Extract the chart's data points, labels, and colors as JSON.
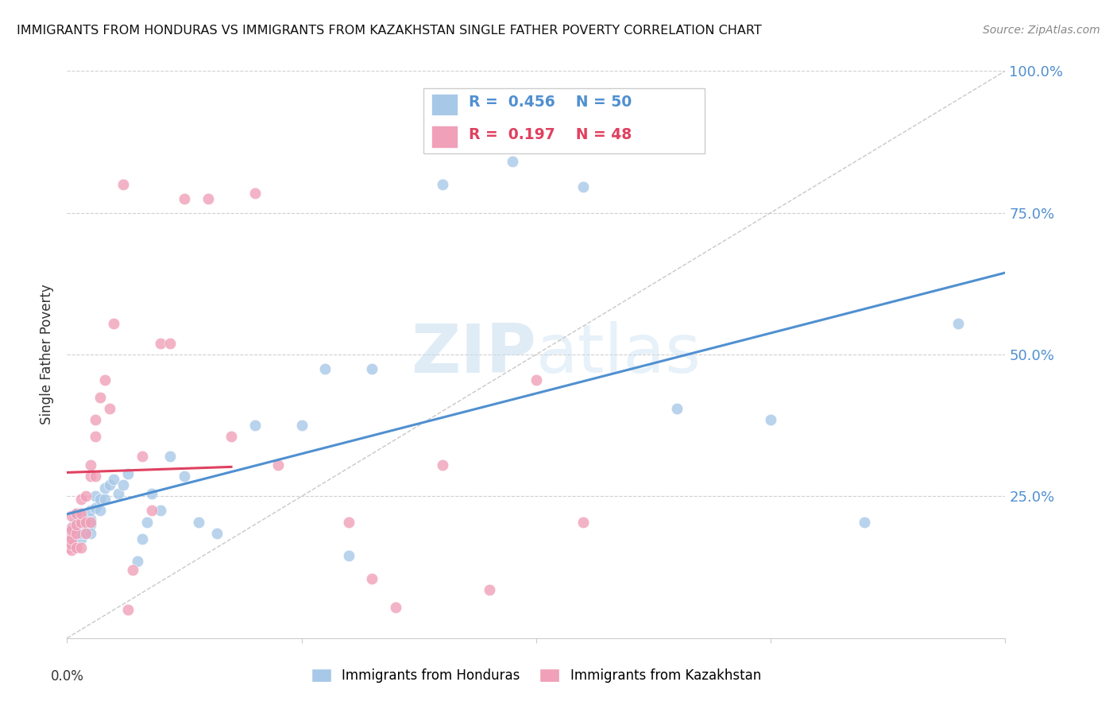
{
  "title": "IMMIGRANTS FROM HONDURAS VS IMMIGRANTS FROM KAZAKHSTAN SINGLE FATHER POVERTY CORRELATION CHART",
  "source": "Source: ZipAtlas.com",
  "ylabel": "Single Father Poverty",
  "right_yticks": [
    "100.0%",
    "75.0%",
    "50.0%",
    "25.0%"
  ],
  "right_ytick_vals": [
    1.0,
    0.75,
    0.5,
    0.25
  ],
  "legend_blue_r": "0.456",
  "legend_blue_n": "50",
  "legend_pink_r": "0.197",
  "legend_pink_n": "48",
  "blue_color": "#a8c8e8",
  "pink_color": "#f0a0b8",
  "blue_line_color": "#5090d0",
  "pink_line_color": "#e04060",
  "diagonal_color": "#c8c8c8",
  "watermark_zip": "ZIP",
  "watermark_atlas": "atlas",
  "blue_x": [
    0.0005,
    0.001,
    0.001,
    0.0015,
    0.002,
    0.002,
    0.002,
    0.003,
    0.003,
    0.003,
    0.003,
    0.004,
    0.004,
    0.004,
    0.005,
    0.005,
    0.005,
    0.005,
    0.006,
    0.006,
    0.007,
    0.007,
    0.008,
    0.008,
    0.009,
    0.01,
    0.011,
    0.012,
    0.013,
    0.015,
    0.016,
    0.017,
    0.018,
    0.02,
    0.022,
    0.025,
    0.028,
    0.032,
    0.04,
    0.05,
    0.055,
    0.06,
    0.065,
    0.08,
    0.095,
    0.11,
    0.13,
    0.15,
    0.17,
    0.19
  ],
  "blue_y": [
    0.185,
    0.195,
    0.17,
    0.2,
    0.22,
    0.19,
    0.205,
    0.2,
    0.175,
    0.22,
    0.185,
    0.185,
    0.21,
    0.2,
    0.21,
    0.225,
    0.2,
    0.185,
    0.25,
    0.23,
    0.245,
    0.225,
    0.265,
    0.245,
    0.27,
    0.28,
    0.255,
    0.27,
    0.29,
    0.135,
    0.175,
    0.205,
    0.255,
    0.225,
    0.32,
    0.285,
    0.205,
    0.185,
    0.375,
    0.375,
    0.475,
    0.145,
    0.475,
    0.8,
    0.84,
    0.795,
    0.405,
    0.385,
    0.205,
    0.555
  ],
  "pink_x": [
    0.0003,
    0.0005,
    0.001,
    0.001,
    0.001,
    0.001,
    0.001,
    0.001,
    0.002,
    0.002,
    0.002,
    0.002,
    0.003,
    0.003,
    0.003,
    0.003,
    0.004,
    0.004,
    0.004,
    0.005,
    0.005,
    0.005,
    0.006,
    0.006,
    0.006,
    0.007,
    0.008,
    0.009,
    0.01,
    0.012,
    0.013,
    0.014,
    0.016,
    0.018,
    0.02,
    0.022,
    0.025,
    0.03,
    0.035,
    0.04,
    0.045,
    0.06,
    0.065,
    0.07,
    0.08,
    0.09,
    0.1,
    0.11
  ],
  "pink_y": [
    0.175,
    0.16,
    0.155,
    0.165,
    0.175,
    0.195,
    0.215,
    0.19,
    0.16,
    0.185,
    0.2,
    0.22,
    0.16,
    0.205,
    0.22,
    0.245,
    0.185,
    0.205,
    0.25,
    0.205,
    0.285,
    0.305,
    0.285,
    0.355,
    0.385,
    0.425,
    0.455,
    0.405,
    0.555,
    0.8,
    0.05,
    0.12,
    0.32,
    0.225,
    0.52,
    0.52,
    0.775,
    0.775,
    0.355,
    0.785,
    0.305,
    0.205,
    0.105,
    0.055,
    0.305,
    0.085,
    0.455,
    0.205
  ]
}
